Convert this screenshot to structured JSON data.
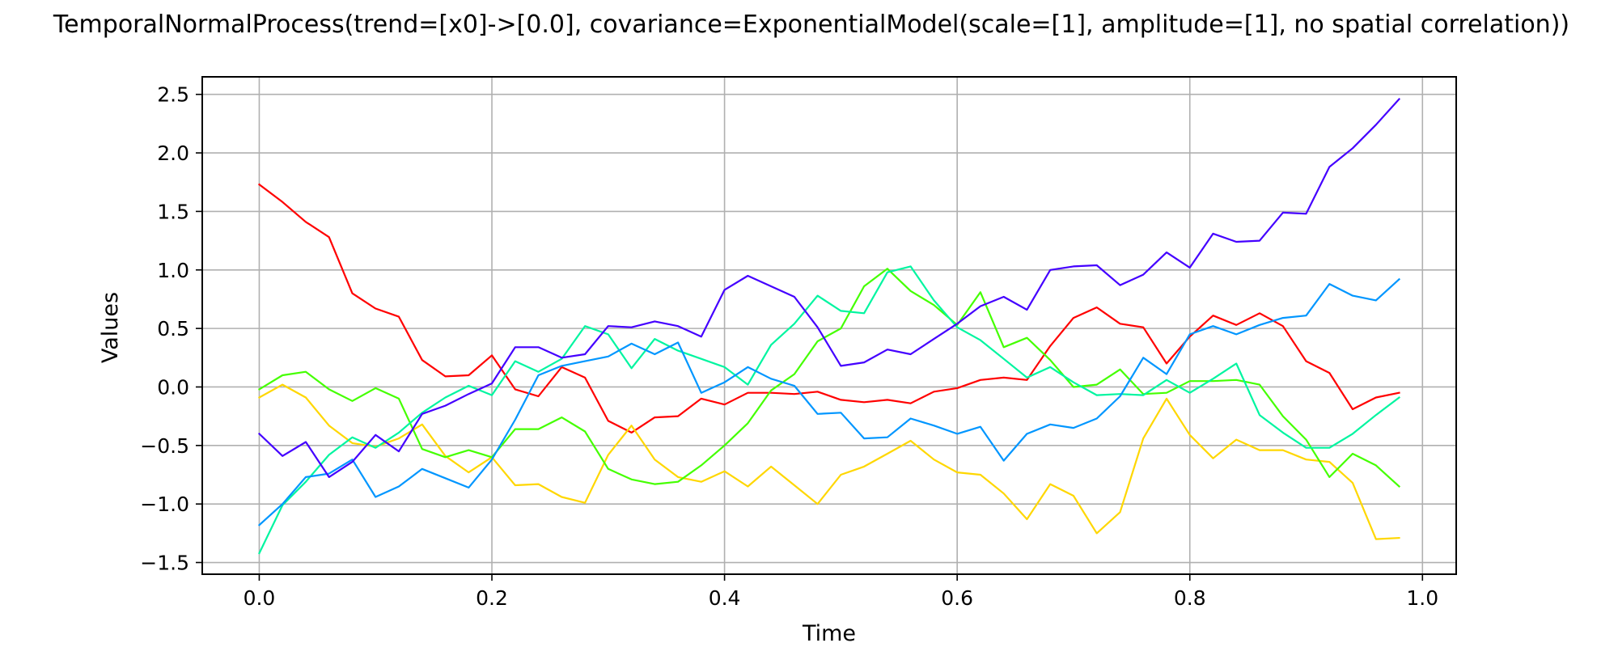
{
  "chart_data": {
    "type": "line",
    "title": "TemporalNormalProcess(trend=[x0]->[0.0], covariance=ExponentialModel(scale=[1], amplitude=[1], no spatial correlation))",
    "xlabel": "Time",
    "ylabel": "Values",
    "xlim": [
      -0.049,
      1.029
    ],
    "ylim": [
      -1.6,
      2.65
    ],
    "xticks": [
      "0.0",
      "0.2",
      "0.4",
      "0.6",
      "0.8",
      "1.0"
    ],
    "xtick_values": [
      0.0,
      0.2,
      0.4,
      0.6,
      0.8,
      1.0
    ],
    "yticks": [
      "2.5",
      "2.0",
      "1.5",
      "1.0",
      "0.5",
      "0.0",
      "−0.5",
      "−1.0",
      "−1.5"
    ],
    "ytick_values": [
      2.5,
      2.0,
      1.5,
      1.0,
      0.5,
      0.0,
      -0.5,
      -1.0,
      -1.5
    ],
    "grid": true,
    "x": [
      0.0,
      0.02,
      0.04,
      0.06,
      0.08,
      0.1,
      0.12,
      0.14,
      0.16,
      0.18,
      0.2,
      0.22,
      0.24,
      0.26,
      0.28,
      0.3,
      0.32,
      0.34,
      0.36,
      0.38,
      0.4,
      0.42,
      0.44,
      0.46,
      0.48,
      0.5,
      0.52,
      0.54,
      0.56,
      0.58,
      0.6,
      0.62,
      0.64,
      0.66,
      0.68,
      0.7,
      0.72,
      0.74,
      0.76,
      0.78,
      0.8,
      0.82,
      0.84,
      0.86,
      0.88,
      0.9,
      0.92,
      0.94,
      0.96,
      0.98
    ],
    "series": [
      {
        "color": "#ff0000",
        "values": [
          1.73,
          1.58,
          1.41,
          1.28,
          0.8,
          0.67,
          0.6,
          0.23,
          0.09,
          0.1,
          0.27,
          -0.02,
          -0.08,
          0.17,
          0.08,
          -0.29,
          -0.39,
          -0.26,
          -0.25,
          -0.1,
          -0.15,
          -0.05,
          -0.05,
          -0.06,
          -0.04,
          -0.11,
          -0.13,
          -0.11,
          -0.14,
          -0.04,
          -0.01,
          0.06,
          0.08,
          0.06,
          0.35,
          0.59,
          0.68,
          0.54,
          0.51,
          0.2,
          0.43,
          0.61,
          0.53,
          0.63,
          0.52,
          0.22,
          0.12,
          -0.19,
          -0.09,
          -0.05
        ]
      },
      {
        "color": "#ffd700",
        "values": [
          -0.09,
          0.02,
          -0.09,
          -0.33,
          -0.48,
          -0.51,
          -0.44,
          -0.32,
          -0.59,
          -0.73,
          -0.6,
          -0.84,
          -0.83,
          -0.94,
          -0.99,
          -0.58,
          -0.33,
          -0.62,
          -0.77,
          -0.81,
          -0.72,
          -0.85,
          -0.68,
          -0.84,
          -1.0,
          -0.75,
          -0.68,
          -0.57,
          -0.46,
          -0.62,
          -0.73,
          -0.75,
          -0.91,
          -1.13,
          -0.83,
          -0.93,
          -1.25,
          -1.07,
          -0.44,
          -0.1,
          -0.41,
          -0.61,
          -0.45,
          -0.54,
          -0.54,
          -0.62,
          -0.64,
          -0.82,
          -1.3,
          -1.29
        ]
      },
      {
        "color": "#44ff00",
        "values": [
          -0.02,
          0.1,
          0.13,
          -0.02,
          -0.12,
          -0.01,
          -0.1,
          -0.53,
          -0.6,
          -0.54,
          -0.6,
          -0.36,
          -0.36,
          -0.26,
          -0.38,
          -0.7,
          -0.79,
          -0.83,
          -0.81,
          -0.67,
          -0.5,
          -0.31,
          -0.03,
          0.11,
          0.39,
          0.5,
          0.86,
          1.01,
          0.82,
          0.7,
          0.53,
          0.81,
          0.34,
          0.42,
          0.23,
          0.0,
          0.02,
          0.15,
          -0.06,
          -0.05,
          0.05,
          0.05,
          0.06,
          0.02,
          -0.25,
          -0.45,
          -0.77,
          -0.57,
          -0.67,
          -0.85
        ]
      },
      {
        "color": "#00f5a0",
        "values": [
          -1.42,
          -1.01,
          -0.81,
          -0.58,
          -0.43,
          -0.52,
          -0.39,
          -0.22,
          -0.09,
          0.01,
          -0.07,
          0.22,
          0.13,
          0.24,
          0.52,
          0.45,
          0.16,
          0.41,
          0.31,
          0.24,
          0.17,
          0.02,
          0.36,
          0.54,
          0.78,
          0.65,
          0.63,
          0.98,
          1.03,
          0.74,
          0.51,
          0.4,
          0.24,
          0.08,
          0.17,
          0.04,
          -0.07,
          -0.06,
          -0.07,
          0.06,
          -0.05,
          0.07,
          0.2,
          -0.24,
          -0.39,
          -0.52,
          -0.52,
          -0.4,
          -0.24,
          -0.09
        ]
      },
      {
        "color": "#0096ff",
        "values": [
          -1.18,
          -1.0,
          -0.77,
          -0.74,
          -0.62,
          -0.94,
          -0.85,
          -0.7,
          -0.78,
          -0.86,
          -0.62,
          -0.28,
          0.1,
          0.18,
          0.22,
          0.26,
          0.37,
          0.28,
          0.38,
          -0.05,
          0.04,
          0.17,
          0.07,
          0.01,
          -0.23,
          -0.22,
          -0.44,
          -0.43,
          -0.27,
          -0.33,
          -0.4,
          -0.34,
          -0.63,
          -0.4,
          -0.32,
          -0.35,
          -0.27,
          -0.08,
          0.25,
          0.11,
          0.45,
          0.52,
          0.45,
          0.53,
          0.59,
          0.61,
          0.88,
          0.78,
          0.74,
          0.92
        ]
      },
      {
        "color": "#4400ff",
        "values": [
          -0.4,
          -0.59,
          -0.47,
          -0.77,
          -0.64,
          -0.41,
          -0.55,
          -0.23,
          -0.16,
          -0.06,
          0.03,
          0.34,
          0.34,
          0.25,
          0.28,
          0.52,
          0.51,
          0.56,
          0.52,
          0.43,
          0.83,
          0.95,
          0.86,
          0.77,
          0.51,
          0.18,
          0.21,
          0.32,
          0.28,
          0.41,
          0.54,
          0.69,
          0.77,
          0.66,
          1.0,
          1.03,
          1.04,
          0.87,
          0.96,
          1.15,
          1.02,
          1.31,
          1.24,
          1.25,
          1.49,
          1.48,
          1.88,
          2.04,
          2.24,
          2.46
        ]
      }
    ]
  }
}
